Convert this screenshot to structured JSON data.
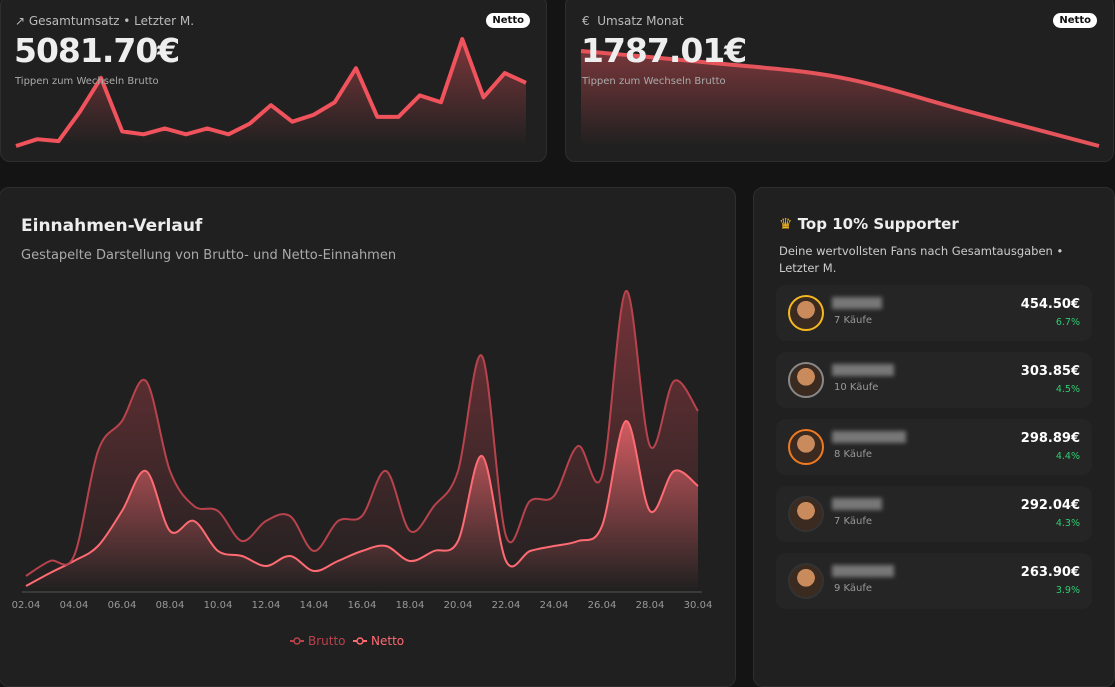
{
  "cards": [
    {
      "title": "Gesamtumsatz • Letzter M.",
      "badge": "Netto",
      "value": "5081.70€",
      "hint": "Tippen zum Wechseln Brutto",
      "color": "#f0535c",
      "sparkline": [
        0,
        7,
        5,
        35,
        70,
        15,
        12,
        18,
        12,
        18,
        12,
        23,
        42,
        25,
        32,
        45,
        80,
        30,
        30,
        52,
        45,
        110,
        50,
        75,
        65
      ]
    },
    {
      "title": "Umsatz Monat",
      "badge": "Netto",
      "value": "1787.01€",
      "hint": "Tippen zum Wechseln Brutto",
      "color": "#e5535b",
      "sparkline": [
        97,
        85,
        70,
        35,
        0
      ]
    }
  ],
  "chart_data": {
    "type": "area",
    "stacked": true,
    "title": "Einnahmen-Verlauf",
    "subtitle": "Gestapelte Darstellung von Brutto- und Netto-Einnahmen",
    "categories": [
      "02.04",
      null,
      "04.04",
      null,
      "06.04",
      null,
      "08.04",
      null,
      "10.04",
      null,
      "12.04",
      null,
      "14.04",
      null,
      "16.04",
      null,
      "18.04",
      null,
      "20.04",
      null,
      "22.04",
      null,
      "24.04",
      null,
      "26.04",
      null,
      "28.04",
      null,
      "30.04"
    ],
    "series": [
      {
        "name": "Brutto",
        "color": "#b8434c",
        "values": [
          10,
          12,
          5,
          95,
          90,
          90,
          60,
          15,
          40,
          15,
          45,
          40,
          20,
          40,
          35,
          75,
          30,
          45,
          70,
          100,
          25,
          50,
          50,
          95,
          50,
          130,
          65,
          90,
          75
        ]
      },
      {
        "name": "Netto",
        "color": "#ff6b72",
        "values": [
          5,
          18,
          30,
          45,
          80,
          120,
          60,
          70,
          40,
          35,
          25,
          35,
          20,
          30,
          40,
          45,
          30,
          40,
          50,
          135,
          30,
          40,
          45,
          50,
          65,
          170,
          80,
          120,
          105
        ]
      }
    ],
    "legend": "bottom"
  },
  "supporters": {
    "title": "Top 10% Supporter",
    "subtitle": "Deine wertvollsten Fans nach Gesamtausgaben • Letzter M.",
    "items": [
      {
        "purchases": "7 Käufe",
        "amount": "454.50€",
        "share": "6.7%"
      },
      {
        "purchases": "10 Käufe",
        "amount": "303.85€",
        "share": "4.5%"
      },
      {
        "purchases": "8 Käufe",
        "amount": "298.89€",
        "share": "4.4%"
      },
      {
        "purchases": "7 Käufe",
        "amount": "292.04€",
        "share": "4.3%"
      },
      {
        "purchases": "9 Käufe",
        "amount": "263.90€",
        "share": "3.9%"
      }
    ]
  }
}
